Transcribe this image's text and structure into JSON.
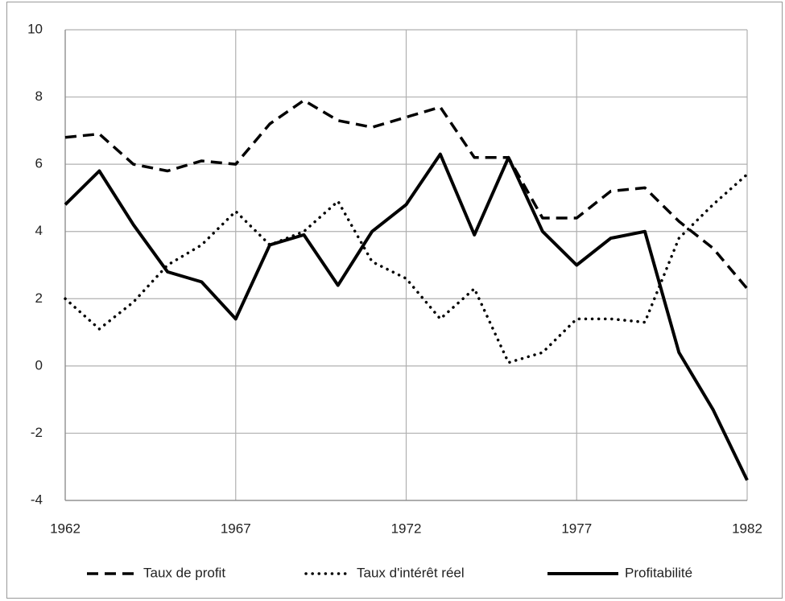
{
  "chart_data": {
    "type": "line",
    "x": [
      1962,
      1963,
      1964,
      1965,
      1966,
      1967,
      1968,
      1969,
      1970,
      1971,
      1972,
      1973,
      1974,
      1975,
      1976,
      1977,
      1978,
      1979,
      1980,
      1981,
      1982
    ],
    "series": [
      {
        "name": "Taux de profit",
        "color": "#000000",
        "style": "dashed",
        "values": [
          6.8,
          6.9,
          6.0,
          5.8,
          6.1,
          6.0,
          7.2,
          7.9,
          7.3,
          7.1,
          7.4,
          7.7,
          6.2,
          6.2,
          4.4,
          4.4,
          5.2,
          5.3,
          4.3,
          3.5,
          2.3
        ]
      },
      {
        "name": "Taux d'intérêt réel",
        "color": "#000000",
        "style": "dotted",
        "values": [
          2.0,
          1.1,
          1.9,
          3.0,
          3.6,
          4.6,
          3.6,
          4.0,
          4.9,
          3.1,
          2.6,
          1.4,
          2.3,
          0.1,
          0.4,
          1.4,
          1.4,
          1.3,
          3.8,
          4.8,
          5.7
        ]
      },
      {
        "name": "Profitabilité",
        "color": "#000000",
        "style": "solid",
        "values": [
          4.8,
          5.8,
          4.2,
          2.8,
          2.5,
          1.4,
          3.6,
          3.9,
          2.4,
          4.0,
          4.8,
          6.3,
          3.9,
          6.2,
          4.0,
          3.0,
          3.8,
          4.0,
          0.4,
          -1.3,
          -3.4
        ]
      }
    ],
    "xlim": [
      1962,
      1982
    ],
    "xticks": [
      1962,
      1967,
      1972,
      1977,
      1982
    ],
    "ylim": [
      -4,
      10
    ],
    "yticks": [
      -4,
      -2,
      0,
      2,
      4,
      6,
      8,
      10
    ],
    "grid": true,
    "legend": "bottom"
  }
}
